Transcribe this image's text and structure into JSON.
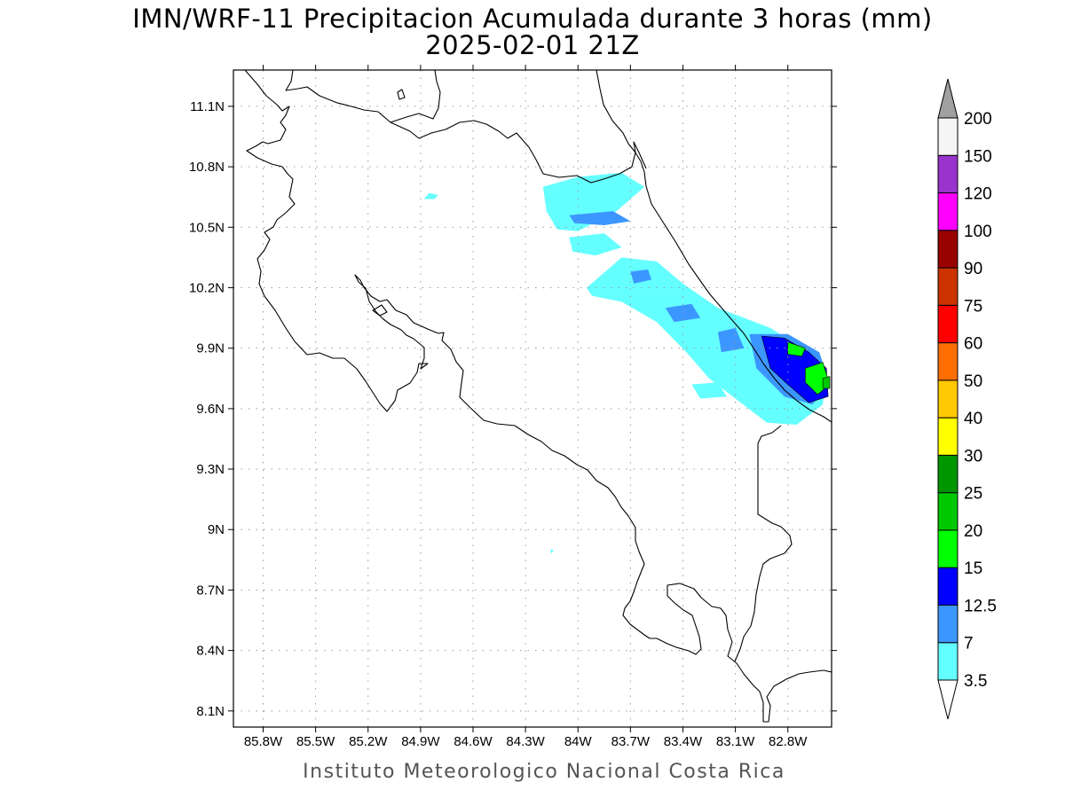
{
  "title": {
    "line1": "IMN/WRF-11 Precipitacion Acumulada durante 3 horas (mm)",
    "line2": "2025-02-01 21Z"
  },
  "footer": "Instituto Meteorologico Nacional Costa Rica",
  "chart_data": {
    "type": "heatmap",
    "projection": "lat-lon",
    "xlim": [
      -85.97,
      -82.55
    ],
    "ylim": [
      8.02,
      11.28
    ],
    "grid": true,
    "x_ticks": [
      -85.8,
      -85.5,
      -85.2,
      -84.9,
      -84.6,
      -84.3,
      -84.0,
      -83.7,
      -83.4,
      -83.1,
      -82.8
    ],
    "x_tick_labels": [
      "85.8W",
      "85.5W",
      "85.2W",
      "84.9W",
      "84.6W",
      "84.3W",
      "84W",
      "83.7W",
      "83.4W",
      "83.1W",
      "82.8W"
    ],
    "y_ticks": [
      8.1,
      8.4,
      8.7,
      9.0,
      9.3,
      9.6,
      9.9,
      10.2,
      10.5,
      10.8,
      11.1
    ],
    "y_tick_labels": [
      "8.1N",
      "8.4N",
      "8.7N",
      "9N",
      "9.3N",
      "9.6N",
      "9.9N",
      "10.2N",
      "10.5N",
      "10.8N",
      "11.1N"
    ],
    "colorbar": {
      "placement": "right",
      "extend": "both",
      "levels": [
        "3.5",
        "7",
        "12.5",
        "15",
        "20",
        "25",
        "30",
        "40",
        "50",
        "60",
        "75",
        "90",
        "100",
        "120",
        "150",
        "200"
      ],
      "colors": [
        "#64ffff",
        "#3c96ff",
        "#0000ff",
        "#00ff00",
        "#00c800",
        "#009600",
        "#ffff00",
        "#ffc800",
        "#ff6e00",
        "#ff0000",
        "#cc3300",
        "#990000",
        "#ff00ff",
        "#9933cc",
        "#f5f5f5"
      ],
      "under_color": "#ffffff",
      "over_color": "#a0a0a0"
    },
    "precip_features": [
      {
        "level": 0,
        "points": [
          [
            -84.2,
            10.7
          ],
          [
            -84.0,
            10.75
          ],
          [
            -83.75,
            10.77
          ],
          [
            -83.62,
            10.7
          ],
          [
            -83.78,
            10.58
          ],
          [
            -84.0,
            10.48
          ],
          [
            -84.12,
            10.49
          ],
          [
            -84.18,
            10.58
          ]
        ]
      },
      {
        "level": 0,
        "points": [
          [
            -84.05,
            10.45
          ],
          [
            -83.85,
            10.47
          ],
          [
            -83.75,
            10.4
          ],
          [
            -83.9,
            10.36
          ],
          [
            -84.03,
            10.38
          ]
        ]
      },
      {
        "level": 0,
        "points": [
          [
            -83.95,
            10.2
          ],
          [
            -83.75,
            10.35
          ],
          [
            -83.55,
            10.33
          ],
          [
            -83.4,
            10.22
          ],
          [
            -83.2,
            10.1
          ],
          [
            -82.9,
            10.0
          ],
          [
            -82.68,
            9.88
          ],
          [
            -82.58,
            9.78
          ],
          [
            -82.6,
            9.62
          ],
          [
            -82.75,
            9.52
          ],
          [
            -82.92,
            9.53
          ],
          [
            -83.1,
            9.65
          ],
          [
            -83.25,
            9.75
          ],
          [
            -83.38,
            9.88
          ],
          [
            -83.55,
            10.03
          ],
          [
            -83.75,
            10.13
          ],
          [
            -83.92,
            10.16
          ]
        ]
      },
      {
        "level": 0,
        "points": [
          [
            -83.35,
            9.72
          ],
          [
            -83.2,
            9.73
          ],
          [
            -83.15,
            9.66
          ],
          [
            -83.3,
            9.65
          ]
        ]
      },
      {
        "level": 0,
        "points": [
          [
            -84.85,
            10.67
          ],
          [
            -84.8,
            10.66
          ],
          [
            -84.82,
            10.64
          ],
          [
            -84.88,
            10.64
          ]
        ]
      },
      {
        "level": 0,
        "points": [
          [
            -84.16,
            8.9
          ],
          [
            -84.14,
            8.9
          ],
          [
            -84.15,
            8.88
          ]
        ]
      },
      {
        "level": 1,
        "points": [
          [
            -84.05,
            10.56
          ],
          [
            -83.8,
            10.58
          ],
          [
            -83.7,
            10.53
          ],
          [
            -83.85,
            10.51
          ],
          [
            -84.02,
            10.52
          ]
        ]
      },
      {
        "level": 1,
        "points": [
          [
            -83.7,
            10.28
          ],
          [
            -83.6,
            10.29
          ],
          [
            -83.58,
            10.24
          ],
          [
            -83.68,
            10.22
          ]
        ]
      },
      {
        "level": 1,
        "points": [
          [
            -83.5,
            10.1
          ],
          [
            -83.35,
            10.12
          ],
          [
            -83.3,
            10.05
          ],
          [
            -83.45,
            10.03
          ]
        ]
      },
      {
        "level": 1,
        "points": [
          [
            -83.2,
            9.98
          ],
          [
            -83.1,
            10.0
          ],
          [
            -83.05,
            9.9
          ],
          [
            -83.18,
            9.88
          ]
        ]
      },
      {
        "level": 1,
        "points": [
          [
            -83.02,
            9.97
          ],
          [
            -82.8,
            9.97
          ],
          [
            -82.62,
            9.88
          ],
          [
            -82.56,
            9.72
          ],
          [
            -82.66,
            9.62
          ],
          [
            -82.82,
            9.66
          ],
          [
            -82.98,
            9.8
          ]
        ]
      },
      {
        "level": 2,
        "points": [
          [
            -82.95,
            9.96
          ],
          [
            -82.82,
            9.95
          ],
          [
            -82.68,
            9.88
          ],
          [
            -82.58,
            9.8
          ],
          [
            -82.57,
            9.66
          ],
          [
            -82.68,
            9.63
          ],
          [
            -82.8,
            9.72
          ],
          [
            -82.9,
            9.8
          ]
        ]
      },
      {
        "level": 3,
        "points": [
          [
            -82.8,
            9.93
          ],
          [
            -82.7,
            9.9
          ],
          [
            -82.72,
            9.86
          ],
          [
            -82.8,
            9.87
          ]
        ]
      },
      {
        "level": 3,
        "points": [
          [
            -82.7,
            9.8
          ],
          [
            -82.6,
            9.83
          ],
          [
            -82.56,
            9.72
          ],
          [
            -82.63,
            9.67
          ],
          [
            -82.7,
            9.73
          ]
        ]
      },
      {
        "level": 4,
        "points": [
          [
            -82.6,
            9.75
          ],
          [
            -82.56,
            9.76
          ],
          [
            -82.56,
            9.7
          ],
          [
            -82.6,
            9.7
          ]
        ]
      }
    ]
  }
}
